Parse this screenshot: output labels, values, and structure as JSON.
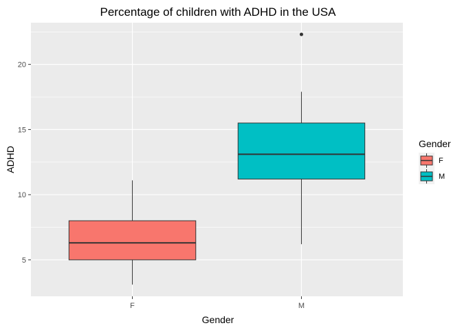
{
  "chart_data": {
    "type": "boxplot",
    "title": "Percentage of children with ADHD in the USA",
    "xlabel": "Gender",
    "ylabel": "ADHD",
    "ylim": [
      2.2,
      23.2
    ],
    "yticks": [
      5,
      10,
      15,
      20
    ],
    "categories": [
      "F",
      "M"
    ],
    "boxes": [
      {
        "category": "F",
        "whisker_low": 3.1,
        "q1": 5.0,
        "median": 6.3,
        "q3": 8.0,
        "whisker_high": 11.1,
        "outliers": [],
        "fill": "#F8766D"
      },
      {
        "category": "M",
        "whisker_low": 6.2,
        "q1": 11.2,
        "median": 13.1,
        "q3": 15.5,
        "whisker_high": 17.9,
        "outliers": [
          22.3
        ],
        "fill": "#00BFC4"
      }
    ],
    "legend": {
      "title": "Gender",
      "position": "right",
      "entries": [
        {
          "label": "F",
          "color": "#F8766D"
        },
        {
          "label": "M",
          "color": "#00BFC4"
        }
      ]
    },
    "grid": true,
    "panel_background": "#EBEBEB"
  }
}
